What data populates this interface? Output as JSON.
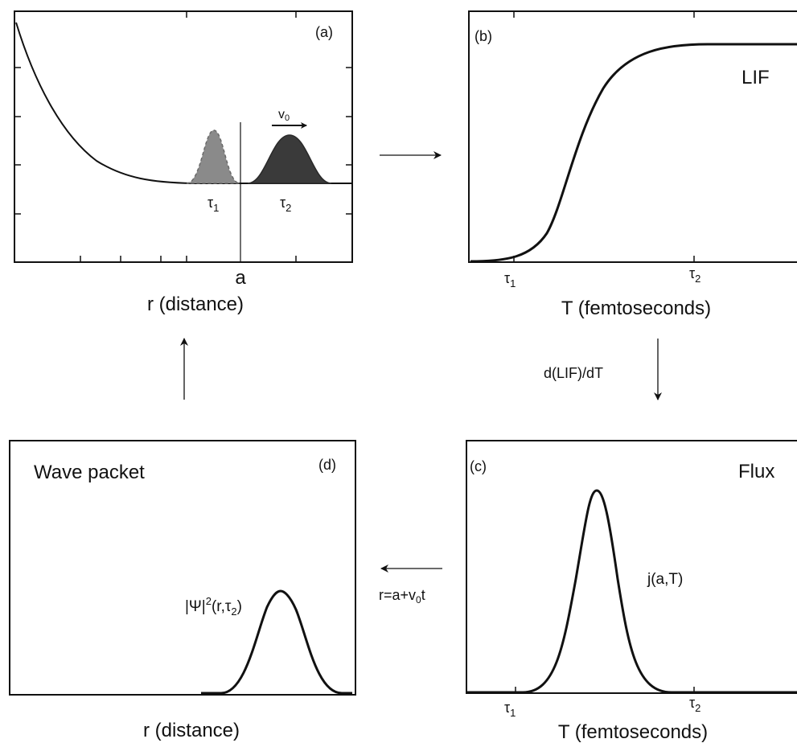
{
  "panels": {
    "a": {
      "tag": "(a)",
      "tick_a": "a",
      "xlabel": "r (distance)",
      "tau1": "τ",
      "tau1_sub": "1",
      "tau2": "τ",
      "tau2_sub": "2",
      "velocity": "v",
      "velocity_sub": "0"
    },
    "b": {
      "tag": "(b)",
      "title": "LIF",
      "xlabel": "T (femtoseconds)",
      "tau1": "τ",
      "tau1_sub": "1",
      "tau2": "τ",
      "tau2_sub": "2"
    },
    "c": {
      "tag": "(c)",
      "title": "Flux",
      "curve_label": "j(a,T)",
      "xlabel": "T (femtoseconds)",
      "tau1": "τ",
      "tau1_sub": "1",
      "tau2": "τ",
      "tau2_sub": "2"
    },
    "d": {
      "tag": "(d)",
      "title": "Wave packet",
      "curve_label_pre": "|Ψ|",
      "curve_label_sup": "2",
      "curve_label_mid": "(r,τ",
      "curve_label_sub": "2",
      "curve_label_post": ")",
      "xlabel": "r (distance)"
    }
  },
  "arrows": {
    "b_to_c": "d(LIF)/dT",
    "c_to_d_pre": "r=a+v",
    "c_to_d_sub": "0",
    "c_to_d_post": "t"
  },
  "colors": {
    "line": "#111111",
    "packet_light": "#8a8a8a",
    "packet_dark": "#3a3a3a"
  }
}
